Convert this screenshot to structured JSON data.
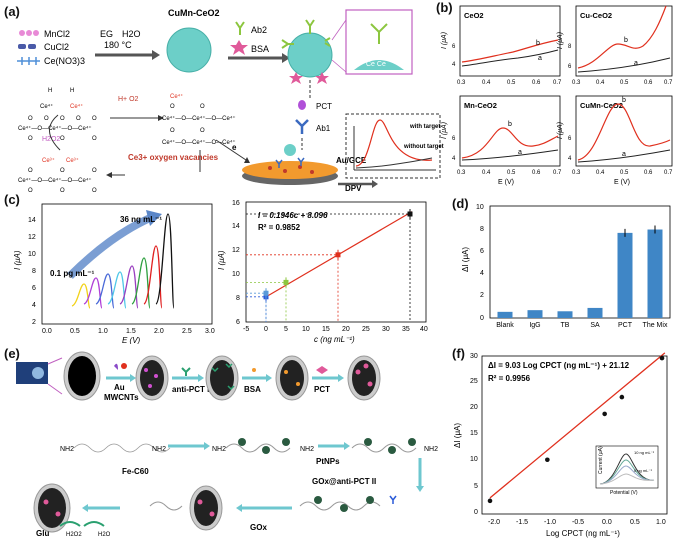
{
  "colors": {
    "red": "#e0301e",
    "blue": "#3b7fc4",
    "bar": "#3f86c6",
    "teal": "#6ccfc8",
    "green": "#8cc63f",
    "grid": "#999999"
  },
  "panel_a": {
    "label": "(a)",
    "reagents": [
      "MnCl2",
      "CuCl2",
      "Ce(NO3)3"
    ],
    "conditions": [
      "EG",
      "H2O",
      "180 °C"
    ],
    "product": "CuMn-CeO2",
    "ab2": "Ab2",
    "bsa": "BSA",
    "pct": "PCT",
    "ab1": "Ab1",
    "electrode": "Au/GCE",
    "dpv": "DPV",
    "with_target": "with target",
    "without_target": "without target",
    "vacancy": "Ce3+ oxygen vacancies",
    "h2o2": "H2O2",
    "hplus": "H+ O2",
    "e_label": "e"
  },
  "panel_b": {
    "label": "(b)",
    "ylabel": "I (μA)",
    "xlabel": "E (V)",
    "subplots": [
      {
        "title": "CeO2",
        "xticks": [
          "0.3",
          "0.4",
          "0.5",
          "0.6",
          "0.7"
        ],
        "yticks": [
          "4",
          "6"
        ]
      },
      {
        "title": "Cu-CeO2",
        "xticks": [
          "0.3",
          "0.4",
          "0.5",
          "0.6",
          "0.7"
        ],
        "yticks": [
          "6",
          "8"
        ]
      },
      {
        "title": "Mn-CeO2",
        "xticks": [
          "0.3",
          "0.4",
          "0.5",
          "0.6",
          "0.7"
        ],
        "yticks": [
          "4",
          "6"
        ]
      },
      {
        "title": "CuMn-CeO2",
        "xticks": [
          "0.3",
          "0.4",
          "0.5",
          "0.6",
          "0.7"
        ],
        "yticks": [
          "4",
          "6"
        ]
      }
    ],
    "series_a": "a",
    "series_b": "b"
  },
  "panel_c": {
    "label": "(c)",
    "left_title_high": "36 ng mL⁻¹",
    "left_title_low": "0.1 pg mL⁻¹",
    "left_xlabel": "E (V)",
    "left_ylabel": "I (μA)",
    "left_xticks": [
      "0.0",
      "0.5",
      "1.0",
      "1.5",
      "2.0",
      "2.5",
      "3.0"
    ],
    "left_yticks": [
      "2",
      "4",
      "6",
      "8",
      "10",
      "12",
      "14"
    ],
    "right_xlabel": "c (ng mL⁻¹)",
    "right_ylabel": "I (μA)",
    "equation": "I = 0.1946c + 8.096",
    "r2": "R² = 0.9852",
    "right_xticks": [
      "-5",
      "0",
      "5",
      "10",
      "15",
      "20",
      "25",
      "30",
      "35",
      "40"
    ],
    "right_yticks": [
      "6",
      "8",
      "10",
      "12",
      "14",
      "16"
    ]
  },
  "chart_data": [
    {
      "type": "scatter",
      "title": "",
      "xlabel": "c (ng mL⁻¹)",
      "ylabel": "I (μA)",
      "xlim": [
        -5,
        40
      ],
      "ylim": [
        6,
        16
      ],
      "x": [
        0.0001,
        0.001,
        5,
        18,
        36
      ],
      "y": [
        8.1,
        8.4,
        9.3,
        11.6,
        15.0
      ],
      "fit": {
        "slope": 0.1946,
        "intercept": 8.096
      }
    },
    {
      "type": "bar",
      "title": "",
      "xlabel": "",
      "ylabel": "ΔI (μA)",
      "ylim": [
        0,
        10
      ],
      "categories": [
        "Blank",
        "IgG",
        "TB",
        "SA",
        "PCT",
        "The Mix"
      ],
      "values": [
        0.55,
        0.7,
        0.6,
        0.9,
        7.6,
        7.9
      ]
    },
    {
      "type": "scatter",
      "title": "",
      "xlabel": "Log CPCT (ng mL⁻¹)",
      "ylabel": "ΔI (μA)",
      "xlim": [
        -2.0,
        1.0
      ],
      "ylim": [
        0,
        30
      ],
      "x": [
        -2.0,
        -1.0,
        0.0,
        0.3,
        1.0
      ],
      "y": [
        2.5,
        10.3,
        19.0,
        22.2,
        29.6
      ],
      "fit": {
        "slope": 9.03,
        "intercept": 21.12
      }
    }
  ],
  "panel_d": {
    "label": "(d)",
    "ylabel": "ΔI (μA)",
    "yticks": [
      "0",
      "2",
      "4",
      "6",
      "8",
      "10"
    ]
  },
  "panel_e": {
    "label": "(e)",
    "steps": [
      "Au",
      "MWCNTs",
      "anti-PCT I",
      "BSA",
      "PCT"
    ],
    "fe": "Fe-C60",
    "pt": "PtNPs",
    "gox_anti": "GOx@anti-PCT II",
    "gox": "GOx",
    "nh2": "NH2",
    "glu": "Glu",
    "h2o2": "H2O2",
    "h2o": "H2O"
  },
  "panel_f": {
    "label": "(f)",
    "equation": "ΔI = 9.03 Log CPCT (ng mL⁻¹) + 21.12",
    "r2": "R² = 0.9956",
    "xlabel": "Log CPCT (ng mL⁻¹)",
    "ylabel": "ΔI (μA)",
    "xticks": [
      "-2.0",
      "-1.5",
      "-1.0",
      "-0.5",
      "0.0",
      "0.5",
      "1.0"
    ],
    "yticks": [
      "0",
      "5",
      "10",
      "15",
      "20",
      "25",
      "30"
    ],
    "inset_xlabel": "Potential (V)",
    "inset_ylabel": "Current (μA)",
    "inset_high": "10 ng mL⁻¹",
    "inset_low": "0 ng mL⁻¹"
  }
}
